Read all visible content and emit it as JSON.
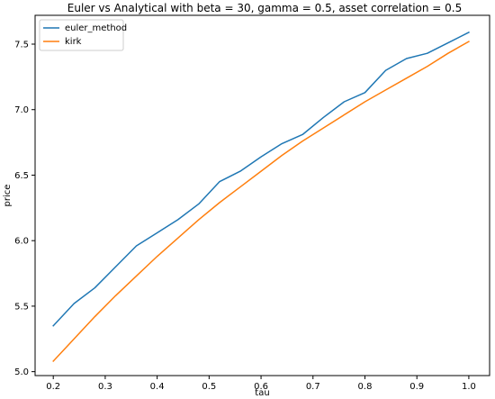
{
  "chart_data": {
    "type": "line",
    "title": "Euler vs Analytical with beta = 30, gamma = 0.5, asset correlation = 0.5",
    "xlabel": "tau",
    "ylabel": "price",
    "xlim": [
      0.165,
      1.04
    ],
    "ylim": [
      4.97,
      7.72
    ],
    "xticks": [
      0.2,
      0.3,
      0.4,
      0.5,
      0.6,
      0.7,
      0.8,
      0.9,
      1.0
    ],
    "xtick_labels": [
      "0.2",
      "0.3",
      "0.4",
      "0.5",
      "0.6",
      "0.7",
      "0.8",
      "0.9",
      "1.0"
    ],
    "yticks": [
      5.0,
      5.5,
      6.0,
      6.5,
      7.0,
      7.5
    ],
    "ytick_labels": [
      "5.0",
      "5.5",
      "6.0",
      "6.5",
      "7.0",
      "7.5"
    ],
    "grid": false,
    "legend_position": "upper-left",
    "series": [
      {
        "name": "euler_method",
        "color": "#1f77b4",
        "x": [
          0.2,
          0.24,
          0.28,
          0.32,
          0.36,
          0.4,
          0.44,
          0.48,
          0.52,
          0.56,
          0.6,
          0.64,
          0.68,
          0.72,
          0.76,
          0.8,
          0.84,
          0.88,
          0.92,
          0.96,
          1.0
        ],
        "y": [
          5.35,
          5.52,
          5.64,
          5.8,
          5.96,
          6.06,
          6.16,
          6.28,
          6.45,
          6.53,
          6.64,
          6.74,
          6.81,
          6.94,
          7.06,
          7.13,
          7.3,
          7.39,
          7.43,
          7.51,
          7.59
        ]
      },
      {
        "name": "kirk",
        "color": "#ff7f0e",
        "x": [
          0.2,
          0.24,
          0.28,
          0.32,
          0.36,
          0.4,
          0.44,
          0.48,
          0.52,
          0.56,
          0.6,
          0.64,
          0.68,
          0.72,
          0.76,
          0.8,
          0.84,
          0.88,
          0.92,
          0.96,
          1.0
        ],
        "y": [
          5.08,
          5.25,
          5.42,
          5.58,
          5.73,
          5.88,
          6.02,
          6.16,
          6.29,
          6.41,
          6.53,
          6.65,
          6.76,
          6.86,
          6.96,
          7.06,
          7.15,
          7.24,
          7.33,
          7.43,
          7.52
        ]
      }
    ]
  }
}
